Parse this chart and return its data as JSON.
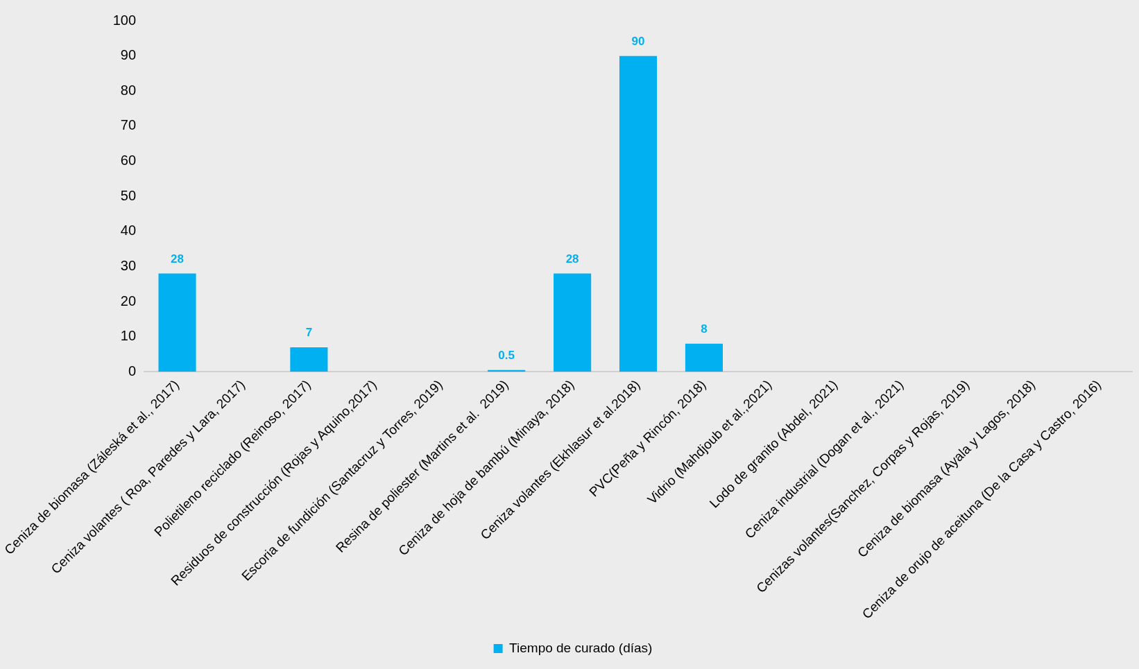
{
  "chart_data": {
    "type": "bar",
    "categories": [
      "Ceniza de biomasa (Záleská et al., 2017)",
      "Ceniza volantes ( Roa, Paredes y Lara, 2017)",
      "Polietileno reciclado (Reinoso, 2017)",
      "Residuos de construcción (Rojas y Aquino,2017)",
      "Escoria de fundición (Santacruz y Torres, 2019)",
      "Resina de poliester (Martins et al.  2019)",
      "Ceniza de hoja de bambú (Minaya, 2018)",
      "Ceniza volantes (Ekhlasur et al.2018)",
      "PVC(Peña y Rincón, 2018)",
      "Vidrio (Mahdjoub et al.,2021)",
      "Lodo de granito (Abdel, 2021)",
      "Ceniza industrial (Dogan et al., 2021)",
      "Cenizas volantes(Sanchez, Corpas y Rojas, 2019)",
      "Ceniza de biomasa (Ayala y Lagos, 2018)",
      "Ceniza de orujo de aceituna (De la Casa y Castro, 2016)"
    ],
    "series": [
      {
        "name": "Tiempo de curado (días)",
        "color": "#00b0f0",
        "values": [
          28,
          null,
          7,
          null,
          null,
          0.5,
          28,
          90,
          8,
          null,
          null,
          null,
          null,
          null,
          null
        ]
      }
    ],
    "ylim": [
      0,
      100
    ],
    "yticks": [
      0,
      10,
      20,
      30,
      40,
      50,
      60,
      70,
      80,
      90,
      100
    ],
    "grid": false,
    "legend": "bottom",
    "data_labels": true
  }
}
